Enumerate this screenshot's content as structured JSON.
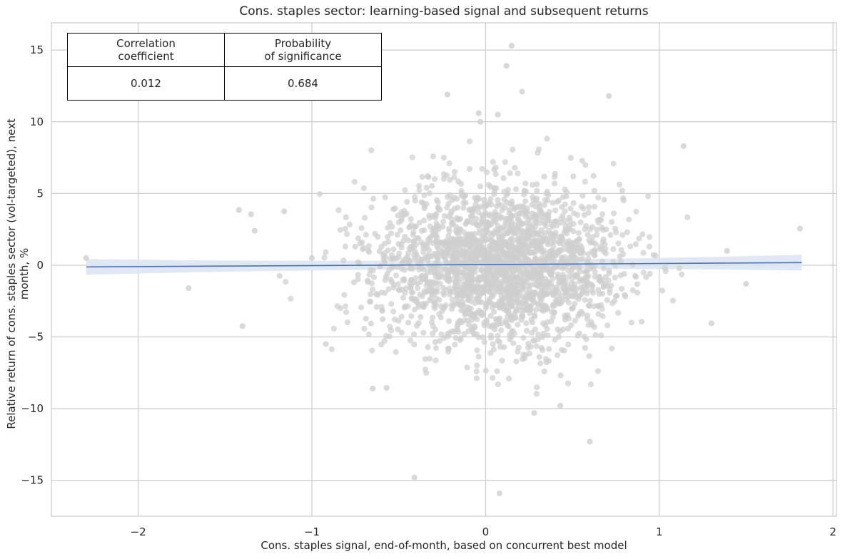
{
  "chart_data": {
    "type": "scatter",
    "title": "Cons. staples sector: learning-based signal and subsequent returns",
    "xlabel": "Cons. staples signal, end-of-month, based on concurrent best model",
    "ylabel": "Relative return of cons. staples sector (vol-targeted), next month, %",
    "xlim": [
      -2.5,
      2.02
    ],
    "ylim": [
      -17.5,
      16.9
    ],
    "x_ticks": [
      -2,
      -1,
      0,
      1,
      2
    ],
    "x_tick_labels": [
      "−2",
      "−1",
      "0",
      "1",
      "2"
    ],
    "y_ticks": [
      -15,
      -10,
      -5,
      0,
      5,
      10,
      15
    ],
    "y_tick_labels": [
      "−15",
      "−10",
      "−5",
      "0",
      "5",
      "10",
      "15"
    ],
    "grid": true,
    "point_color": "#cfcfcf",
    "line_color": "#4c72b0",
    "band_color": "#dbe4f5",
    "regression": {
      "x": [
        -2.3,
        1.82
      ],
      "y": [
        -0.12,
        0.18
      ],
      "ci_halfwidth_ends": 0.55
    },
    "notable_points": [
      {
        "x": 0.15,
        "y": 15.3
      },
      {
        "x": 0.12,
        "y": 13.9
      },
      {
        "x": -0.22,
        "y": 11.9
      },
      {
        "x": 0.21,
        "y": 12.1
      },
      {
        "x": 0.71,
        "y": 11.8
      },
      {
        "x": -0.04,
        "y": 10.6
      },
      {
        "x": 0.07,
        "y": 10.5
      },
      {
        "x": -0.03,
        "y": 10.0
      },
      {
        "x": 1.14,
        "y": 8.3
      },
      {
        "x": -2.3,
        "y": 0.5
      },
      {
        "x": -1.71,
        "y": -1.6
      },
      {
        "x": -1.42,
        "y": 3.85
      },
      {
        "x": -1.35,
        "y": 3.55
      },
      {
        "x": -1.33,
        "y": 2.4
      },
      {
        "x": -1.16,
        "y": 3.75
      },
      {
        "x": -1.4,
        "y": -4.25
      },
      {
        "x": -1.0,
        "y": 0.5
      },
      {
        "x": -0.92,
        "y": -5.5
      },
      {
        "x": 1.81,
        "y": 2.55
      },
      {
        "x": 1.5,
        "y": -1.3
      },
      {
        "x": 1.3,
        "y": -4.05
      },
      {
        "x": 1.39,
        "y": 1.0
      },
      {
        "x": -0.65,
        "y": -8.6
      },
      {
        "x": -0.57,
        "y": -8.55
      },
      {
        "x": 0.28,
        "y": -10.3
      },
      {
        "x": 0.43,
        "y": -9.8
      },
      {
        "x": 0.6,
        "y": -12.3
      },
      {
        "x": -0.41,
        "y": -14.8
      },
      {
        "x": 0.08,
        "y": -15.9
      }
    ],
    "generated_cloud": {
      "count": 2300,
      "x_sd": 0.36,
      "x_mean": 0.08,
      "y_sd": 2.5,
      "y_mean": 0
    }
  },
  "stats_table": {
    "headers": [
      "Correlation\ncoefficient",
      "Probability\nof significance"
    ],
    "values": [
      "0.012",
      "0.684"
    ]
  }
}
